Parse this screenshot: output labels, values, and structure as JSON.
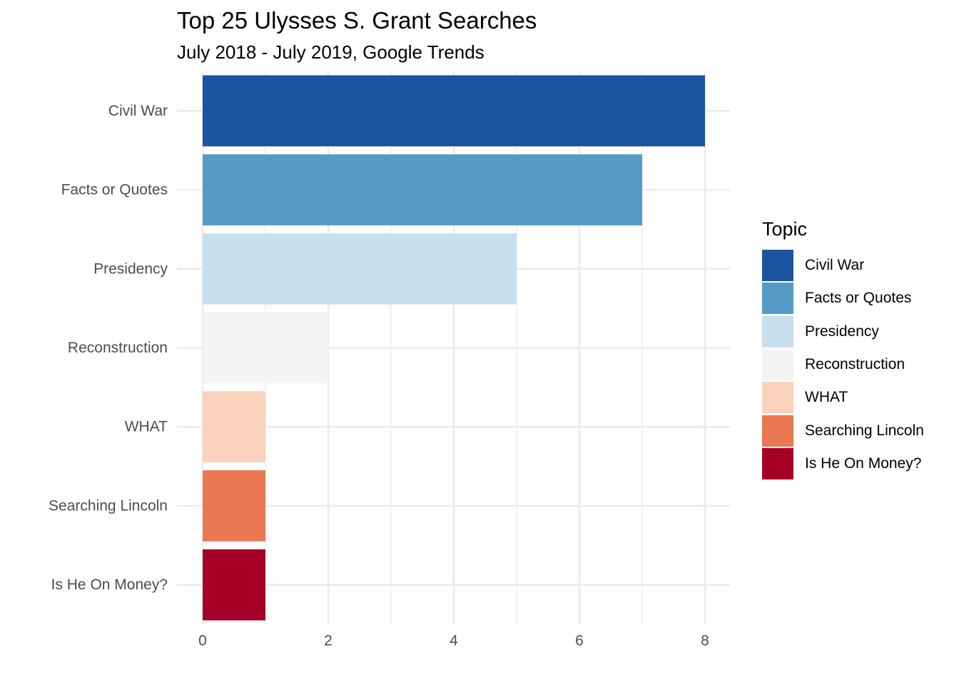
{
  "chart_data": {
    "type": "bar",
    "orientation": "horizontal",
    "title": "Top 25 Ulysses S. Grant Searches",
    "subtitle": "July 2018 - July 2019, Google Trends",
    "xlabel": "",
    "ylabel": "",
    "categories": [
      "Civil War",
      "Facts or Quotes",
      "Presidency",
      "Reconstruction",
      "WHAT",
      "Searching Lincoln",
      "Is He On Money?"
    ],
    "values": [
      8,
      7,
      5,
      2,
      1,
      1,
      1
    ],
    "colors": [
      "#1c54a0",
      "#569bc6",
      "#c8e0ee",
      "#f4f4f4",
      "#fbd2bc",
      "#e97853",
      "#a50026"
    ],
    "xlim": [
      0,
      8
    ],
    "xticks": [
      0,
      2,
      4,
      6,
      8
    ],
    "grid": true,
    "legend": {
      "title": "Topic",
      "position": "right",
      "entries": [
        "Civil War",
        "Facts or Quotes",
        "Presidency",
        "Reconstruction",
        "WHAT",
        "Searching Lincoln",
        "Is He On Money?"
      ]
    }
  }
}
